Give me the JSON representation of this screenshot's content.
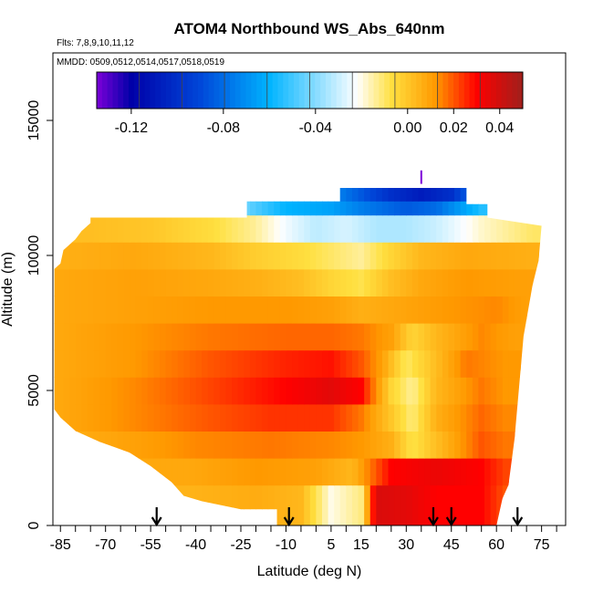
{
  "chart_data": {
    "type": "heatmap",
    "title": "ATOM4 Northbound WS_Abs_640nm",
    "flights": "Flts: 7,8,9,10,11,12",
    "mmdd": "MMDD: 0509,0512,0514,0517,0518,0519",
    "xlabel": "Latitude (deg N)",
    "ylabel": "Altitude (m)",
    "xlim": [
      -87.5,
      83
    ],
    "ylim": [
      0,
      17500
    ],
    "x_ticks": [
      -85,
      -70,
      -55,
      -40,
      -25,
      -10,
      5,
      15,
      30,
      45,
      60,
      75
    ],
    "x_tick_labels": [
      "-85",
      "-70",
      "-55",
      "-40",
      "-25",
      "-10",
      "5",
      "15",
      "30",
      "45",
      "60",
      "75"
    ],
    "y_ticks": [
      0,
      5000,
      10000,
      15000
    ],
    "y_tick_labels": [
      "0",
      "5000",
      "10000",
      "15000"
    ],
    "colorbar": {
      "range": [
        -0.135,
        0.05
      ],
      "colors": [
        "#7b00d8",
        "#0000a8",
        "#0047d9",
        "#00b4ff",
        "#ffffff",
        "#ffe040",
        "#ff9900",
        "#ff0000",
        "#a0201c"
      ],
      "stops": [
        -0.135,
        -0.12,
        -0.09,
        -0.06,
        -0.022,
        -0.007,
        0.012,
        0.03,
        0.05
      ],
      "ticks": [
        -0.12,
        -0.08,
        -0.04,
        0.0,
        0.02,
        0.04
      ],
      "tick_labels": [
        "-0.12",
        "-0.08",
        "-0.04",
        "0.00",
        "0.02",
        "0.04"
      ]
    },
    "profile_markers": [
      -53,
      -9,
      39,
      45,
      67
    ],
    "altitude_levels": [
      1000,
      2000,
      3000,
      4000,
      5000,
      6000,
      7000,
      8000,
      9000,
      10000,
      11000,
      12000
    ],
    "field": [
      {
        "alt": 1000,
        "points": [
          [
            -42,
            0.005
          ],
          [
            -20,
            0.007
          ],
          [
            -5,
            0.004
          ],
          [
            5,
            -0.02
          ],
          [
            15,
            -0.012
          ],
          [
            20,
            0.038
          ],
          [
            30,
            0.036
          ],
          [
            40,
            0.03
          ],
          [
            55,
            0.03
          ],
          [
            63,
            0.02
          ]
        ]
      },
      {
        "alt": 2000,
        "points": [
          [
            -42,
            0.008
          ],
          [
            -20,
            0.012
          ],
          [
            0,
            0.01
          ],
          [
            12,
            0.004
          ],
          [
            18,
            0.016
          ],
          [
            25,
            0.03
          ],
          [
            40,
            0.034
          ],
          [
            55,
            0.03
          ],
          [
            63,
            0.022
          ]
        ]
      },
      {
        "alt": 3000,
        "points": [
          [
            -85,
            0.006
          ],
          [
            -60,
            0.01
          ],
          [
            -40,
            0.014
          ],
          [
            -15,
            0.016
          ],
          [
            5,
            0.014
          ],
          [
            15,
            0.012
          ],
          [
            25,
            0.006
          ],
          [
            32,
            -0.008
          ],
          [
            40,
            0.002
          ],
          [
            55,
            0.02
          ],
          [
            63,
            0.016
          ]
        ]
      },
      {
        "alt": 4000,
        "points": [
          [
            -85,
            0.008
          ],
          [
            -60,
            0.014
          ],
          [
            -35,
            0.02
          ],
          [
            -15,
            0.024
          ],
          [
            5,
            0.024
          ],
          [
            15,
            0.016
          ],
          [
            25,
            0.0
          ],
          [
            32,
            -0.012
          ],
          [
            40,
            0.006
          ],
          [
            55,
            0.018
          ],
          [
            63,
            0.014
          ]
        ]
      },
      {
        "alt": 5000,
        "points": [
          [
            -85,
            0.008
          ],
          [
            -60,
            0.014
          ],
          [
            -35,
            0.022
          ],
          [
            -10,
            0.03
          ],
          [
            5,
            0.036
          ],
          [
            15,
            0.03
          ],
          [
            25,
            -0.004
          ],
          [
            32,
            -0.014
          ],
          [
            40,
            0.004
          ],
          [
            55,
            0.016
          ],
          [
            63,
            0.012
          ]
        ]
      },
      {
        "alt": 6000,
        "points": [
          [
            -85,
            0.008
          ],
          [
            -60,
            0.012
          ],
          [
            -35,
            0.02
          ],
          [
            -10,
            0.026
          ],
          [
            5,
            0.028
          ],
          [
            15,
            0.02
          ],
          [
            22,
            0.01
          ],
          [
            30,
            -0.01
          ],
          [
            38,
            0.0
          ],
          [
            50,
            0.016
          ],
          [
            63,
            0.012
          ]
        ]
      },
      {
        "alt": 7000,
        "points": [
          [
            -85,
            0.008
          ],
          [
            -60,
            0.012
          ],
          [
            -35,
            0.016
          ],
          [
            -10,
            0.018
          ],
          [
            5,
            0.018
          ],
          [
            15,
            0.016
          ],
          [
            25,
            0.01
          ],
          [
            32,
            -0.004
          ],
          [
            40,
            0.004
          ],
          [
            55,
            0.014
          ],
          [
            66,
            0.01
          ]
        ]
      },
      {
        "alt": 8000,
        "points": [
          [
            -85,
            0.008
          ],
          [
            -60,
            0.01
          ],
          [
            -35,
            0.012
          ],
          [
            -10,
            0.012
          ],
          [
            5,
            0.01
          ],
          [
            15,
            0.006
          ],
          [
            25,
            0.008
          ],
          [
            35,
            0.01
          ],
          [
            45,
            0.012
          ],
          [
            60,
            0.014
          ],
          [
            70,
            0.01
          ]
        ]
      },
      {
        "alt": 9000,
        "points": [
          [
            -85,
            0.008
          ],
          [
            -60,
            0.01
          ],
          [
            -35,
            0.008
          ],
          [
            -20,
            0.006
          ],
          [
            -5,
            0.002
          ],
          [
            5,
            -0.004
          ],
          [
            15,
            -0.008
          ],
          [
            25,
            0.002
          ],
          [
            35,
            0.008
          ],
          [
            50,
            0.012
          ],
          [
            70,
            0.01
          ]
        ]
      },
      {
        "alt": 10000,
        "points": [
          [
            -85,
            0.006
          ],
          [
            -60,
            0.008
          ],
          [
            -35,
            0.004
          ],
          [
            -20,
            -0.002
          ],
          [
            -5,
            -0.006
          ],
          [
            5,
            -0.01
          ],
          [
            15,
            -0.014
          ],
          [
            25,
            -0.004
          ],
          [
            35,
            0.004
          ],
          [
            50,
            0.008
          ],
          [
            72,
            0.006
          ]
        ]
      },
      {
        "alt": 11000,
        "points": [
          [
            -75,
            0.002
          ],
          [
            -55,
            0.0
          ],
          [
            -35,
            -0.006
          ],
          [
            -20,
            -0.014
          ],
          [
            -10,
            -0.024
          ],
          [
            0,
            -0.032
          ],
          [
            10,
            -0.028
          ],
          [
            20,
            -0.034
          ],
          [
            30,
            -0.034
          ],
          [
            40,
            -0.03
          ],
          [
            55,
            -0.018
          ],
          [
            72,
            -0.01
          ]
        ]
      },
      {
        "alt": 12000,
        "points": [
          [
            -23,
            -0.045
          ],
          [
            -10,
            -0.06
          ],
          [
            5,
            -0.065
          ],
          [
            15,
            -0.075
          ],
          [
            30,
            -0.085
          ],
          [
            40,
            -0.08
          ],
          [
            55,
            -0.055
          ]
        ]
      }
    ],
    "upper_band": {
      "alt": 12200,
      "lat_range": [
        8,
        50
      ],
      "points": [
        [
          8,
          -0.075
        ],
        [
          25,
          -0.1
        ],
        [
          35,
          -0.108
        ],
        [
          45,
          -0.1
        ],
        [
          50,
          -0.085
        ]
      ]
    },
    "single_cell": {
      "lat": 35,
      "alt": 12900,
      "value": -0.135
    }
  }
}
